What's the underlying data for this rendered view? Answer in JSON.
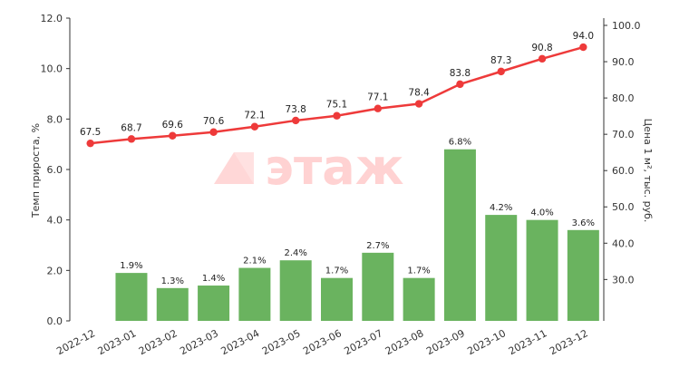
{
  "watermark": {
    "text": "этаж",
    "color": "#ff9b9b"
  },
  "colors": {
    "bars": "#6ab35f",
    "line": "#ee3a3a",
    "axis": "#333333"
  },
  "chart_data": {
    "type": "bar",
    "categories": [
      "2022-12",
      "2023-01",
      "2023-02",
      "2023-03",
      "2023-04",
      "2023-05",
      "2023-06",
      "2023-07",
      "2023-08",
      "2023-09",
      "2023-10",
      "2023-11",
      "2023-12"
    ],
    "series": [
      {
        "type": "bar",
        "axis": "left",
        "values": [
          null,
          1.9,
          1.3,
          1.4,
          2.1,
          2.4,
          1.7,
          2.7,
          1.7,
          6.8,
          4.2,
          4.0,
          3.6
        ],
        "labels": [
          "",
          "1.9%",
          "1.3%",
          "1.4%",
          "2.1%",
          "2.4%",
          "1.7%",
          "2.7%",
          "1.7%",
          "6.8%",
          "4.2%",
          "4.0%",
          "3.6%"
        ]
      },
      {
        "type": "line",
        "axis": "right",
        "values": [
          67.5,
          68.7,
          69.6,
          70.6,
          72.1,
          73.8,
          75.1,
          77.1,
          78.4,
          83.8,
          87.3,
          90.8,
          94.0
        ],
        "labels": [
          "67.5",
          "68.7",
          "69.6",
          "70.6",
          "72.1",
          "73.8",
          "75.1",
          "77.1",
          "78.4",
          "83.8",
          "87.3",
          "90.8",
          "94.0"
        ]
      }
    ],
    "ylabel": "Темп прироста, %",
    "y2label": "Цена 1 м², тыс. руб.",
    "ylim": [
      0,
      12
    ],
    "yticks": [
      "0.0",
      "2.0",
      "4.0",
      "6.0",
      "8.0",
      "10.0",
      "12.0"
    ],
    "y2lim": [
      18.6,
      102.0
    ],
    "y2ticks": [
      "30.0",
      "40.0",
      "50.0",
      "60.0",
      "70.0",
      "80.0",
      "90.0",
      "100.0"
    ],
    "grid": false,
    "legend": "none"
  }
}
